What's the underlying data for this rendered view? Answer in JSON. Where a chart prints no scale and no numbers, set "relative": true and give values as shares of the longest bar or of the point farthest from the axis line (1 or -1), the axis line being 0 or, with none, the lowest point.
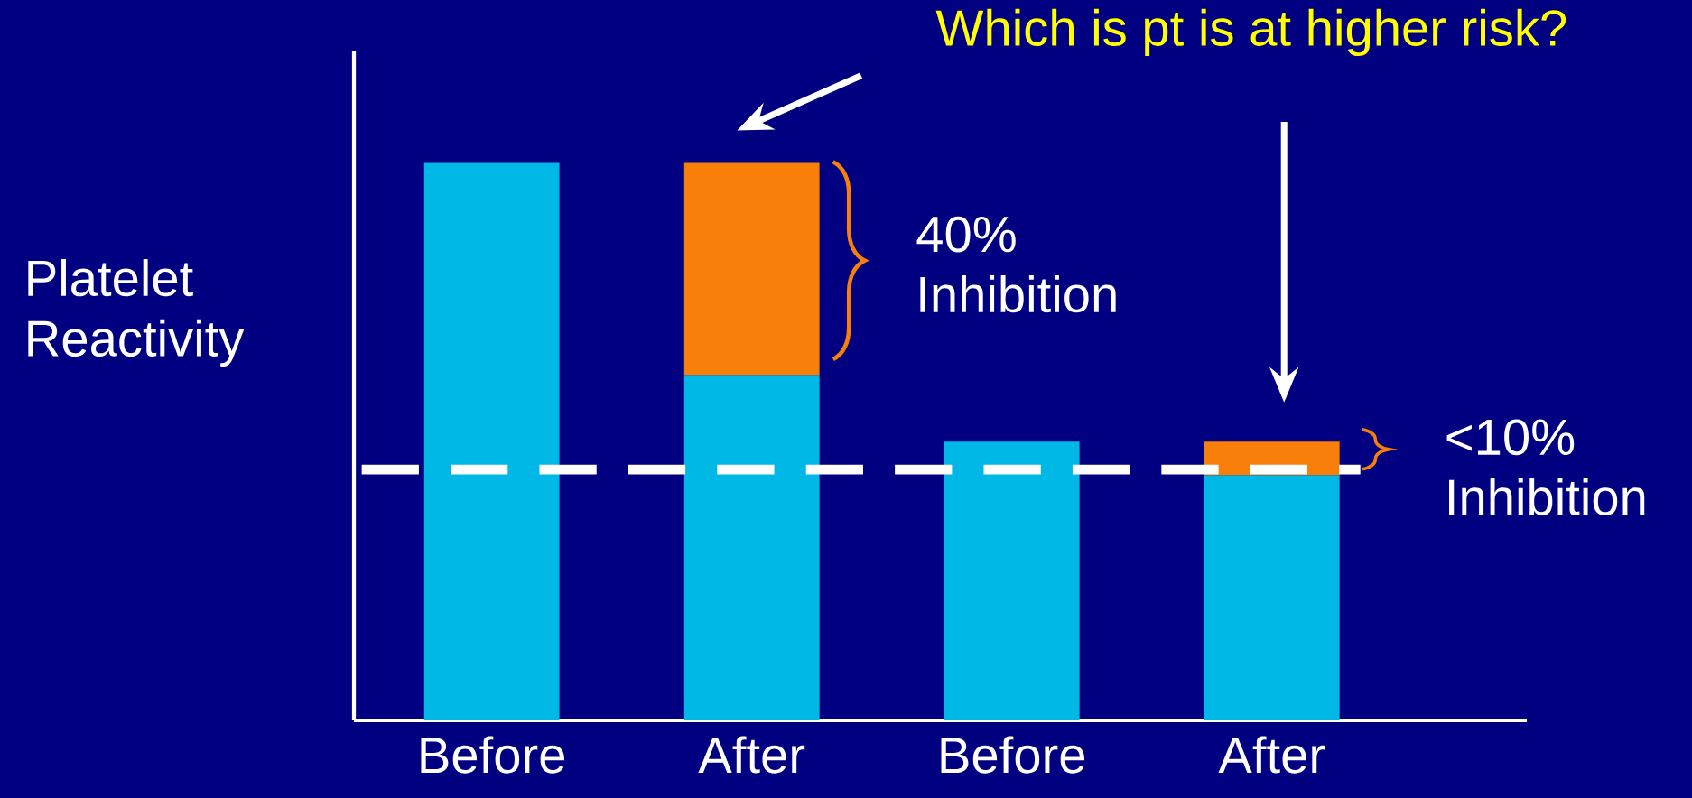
{
  "chart_data": {
    "type": "bar",
    "title": "Which is pt is at higher risk?",
    "ylabel": "Platelet Reactivity",
    "categories": [
      "Before",
      "After",
      "Before",
      "After"
    ],
    "relative": true,
    "stacked": true,
    "series": [
      {
        "color": "#00b8e6",
        "values": [
          1,
          0.62,
          0.5,
          0.44
        ]
      },
      {
        "color": "#f77f0a",
        "values": [
          null,
          0.38,
          null,
          0.06
        ]
      }
    ],
    "ref_lines": [
      {
        "axis": "y",
        "value": 0.45,
        "line_style": "dashed",
        "color": "#ffffff"
      }
    ],
    "annotations": [
      "40% Inhibition",
      "<10% Inhibition"
    ]
  }
}
